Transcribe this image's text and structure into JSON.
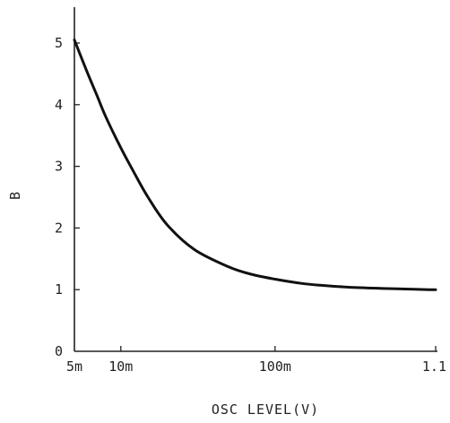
{
  "chart_data": {
    "type": "line",
    "title": "",
    "xlabel": "OSC LEVEL(V)",
    "ylabel": "B",
    "xscale": "log",
    "xlim": [
      0.005,
      1.1
    ],
    "ylim": [
      0,
      5.5
    ],
    "grid": false,
    "x_ticks": [
      {
        "value": 0.005,
        "label": "5m"
      },
      {
        "value": 0.01,
        "label": "10m"
      },
      {
        "value": 0.1,
        "label": "100m"
      },
      {
        "value": 1.1,
        "label": "1.1"
      }
    ],
    "y_ticks": [
      {
        "value": 0,
        "label": "0"
      },
      {
        "value": 1,
        "label": "1"
      },
      {
        "value": 2,
        "label": "2"
      },
      {
        "value": 3,
        "label": "3"
      },
      {
        "value": 4,
        "label": "4"
      },
      {
        "value": 5,
        "label": "5"
      }
    ],
    "series": [
      {
        "color": "#111111",
        "x": [
          0.005,
          0.006,
          0.007,
          0.008,
          0.01,
          0.012,
          0.015,
          0.02,
          0.03,
          0.05,
          0.07,
          0.1,
          0.15,
          0.2,
          0.3,
          0.5,
          0.7,
          1.0,
          1.1
        ],
        "y": [
          5.05,
          4.55,
          4.15,
          3.8,
          3.3,
          2.93,
          2.5,
          2.05,
          1.65,
          1.37,
          1.25,
          1.17,
          1.1,
          1.07,
          1.04,
          1.02,
          1.01,
          1.0,
          1.0
        ]
      }
    ]
  }
}
